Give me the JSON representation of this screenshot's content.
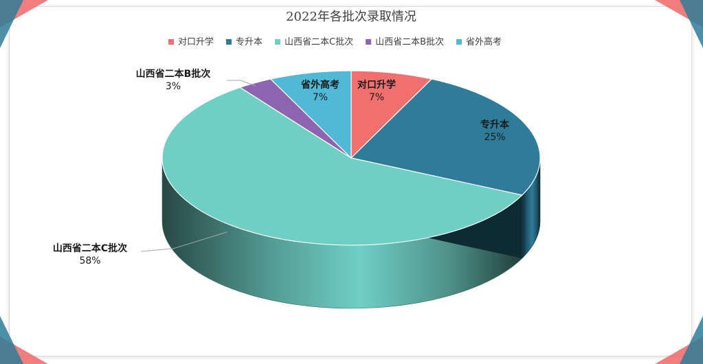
{
  "chart_data": {
    "type": "pie",
    "title": "2022年各批次录取情况",
    "slices": [
      {
        "name": "对口升学",
        "value": 7,
        "label": "7%",
        "color": "#F07070"
      },
      {
        "name": "专升本",
        "value": 25,
        "label": "25%",
        "color": "#2E7C99"
      },
      {
        "name": "山西省二本C批次",
        "value": 58,
        "label": "58%",
        "color": "#6FCFC4"
      },
      {
        "name": "山西省二本B批次",
        "value": 3,
        "label": "3%",
        "color": "#8C64B0"
      },
      {
        "name": "省外高考",
        "value": 7,
        "label": "7%",
        "color": "#4FB9D6"
      }
    ],
    "legend_position": "top"
  },
  "decor": {
    "corner_colors": [
      "#F07070",
      "#2E7C99",
      "#6FCFC4"
    ]
  }
}
